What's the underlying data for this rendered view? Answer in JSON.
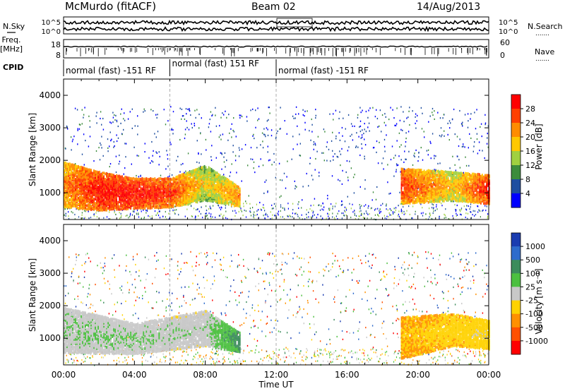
{
  "header": {
    "station": "McMurdo (fitACF)",
    "beam": "Beam 02",
    "date": "14/Aug/2013"
  },
  "side_labels": {
    "nsky": "N.Sky",
    "nsearch": "N.Search",
    "freq_line1": "Freq.",
    "freq_line2": "[MHz]",
    "nave": "Nave",
    "cpid": "CPID",
    "dots": "......."
  },
  "top_panels": {
    "noise_ticks_left": [
      "10^5",
      "10^0"
    ],
    "noise_ticks_right": [
      "10^5",
      "10^0"
    ],
    "freq_ticks_left": [
      "18",
      "8"
    ],
    "nave_ticks_right": [
      "60",
      "0"
    ]
  },
  "cpid_segments": [
    {
      "label": "normal (fast) -151 RF",
      "start_hour": 0,
      "end_hour": 6
    },
    {
      "label": "normal (fast) 151 RF",
      "start_hour": 6,
      "end_hour": 12
    },
    {
      "label": "normal (fast) -151 RF",
      "start_hour": 12,
      "end_hour": 24
    }
  ],
  "axes": {
    "xlabel": "Time UT",
    "x_ticks": [
      "00:00",
      "04:00",
      "08:00",
      "12:00",
      "16:00",
      "20:00",
      "00:00"
    ],
    "ylabel": "Slant Range [km]",
    "y_ticks": [
      "4000",
      "3000",
      "2000",
      "1000"
    ]
  },
  "power_colorbar": {
    "label": "Power [dB]",
    "ticks": [
      "28",
      "24",
      "20",
      "16",
      "12",
      "8",
      "4"
    ],
    "colors": [
      "#ff0000",
      "#ff4000",
      "#ff8c00",
      "#ffc800",
      "#a0d040",
      "#3c8c3c",
      "#1e4ea0",
      "#0000ff"
    ]
  },
  "velocity_colorbar": {
    "label": "Velocity [m s⁻¹]",
    "ticks": [
      "1000",
      "500",
      "100",
      "25",
      "-25",
      "-100",
      "-500",
      "-1000"
    ],
    "colors": [
      "#1a3cb0",
      "#2e6ccc",
      "#3c8c5c",
      "#4cc040",
      "#c8c8c8",
      "#ffd200",
      "#ff9000",
      "#ff5000",
      "#ff0000"
    ]
  },
  "chart_data": {
    "type": "heatmap",
    "title": "McMurdo (fitACF) Beam 02 14/Aug/2013",
    "xlabel": "Time UT",
    "ylabel": "Slant Range [km]",
    "xlim": [
      0,
      24
    ],
    "ylim": [
      180,
      4500
    ],
    "panels": [
      {
        "name": "Power [dB]",
        "color_range": [
          0,
          30
        ],
        "main_echo_band": [
          {
            "hour": 0,
            "range_low_km": 600,
            "range_high_km": 2000,
            "value_db": 22
          },
          {
            "hour": 2,
            "range_low_km": 500,
            "range_high_km": 1700,
            "value_db": 28
          },
          {
            "hour": 4,
            "range_low_km": 550,
            "range_high_km": 1500,
            "value_db": 28
          },
          {
            "hour": 6,
            "range_low_km": 600,
            "range_high_km": 1500,
            "value_db": 26
          },
          {
            "hour": 8,
            "range_low_km": 800,
            "range_high_km": 1900,
            "value_db": 16
          },
          {
            "hour": 10,
            "range_low_km": 600,
            "range_high_km": 1200,
            "value_db": 22
          },
          {
            "hour": 19,
            "range_low_km": 700,
            "range_high_km": 1800,
            "value_db": 26
          },
          {
            "hour": 22,
            "range_low_km": 800,
            "range_high_km": 1700,
            "value_db": 18
          },
          {
            "hour": 24,
            "range_low_km": 700,
            "range_high_km": 1600,
            "value_db": 28
          }
        ]
      },
      {
        "name": "Velocity [m s⁻¹]",
        "color_range": [
          -1000,
          1000
        ],
        "main_echo_band": [
          {
            "hour": 0,
            "range_low_km": 600,
            "range_high_km": 2000,
            "value_ms": 100
          },
          {
            "hour": 4,
            "range_low_km": 550,
            "range_high_km": 1500,
            "value_ms": 100
          },
          {
            "hour": 8,
            "range_low_km": 800,
            "range_high_km": 1900,
            "value_ms": 50
          },
          {
            "hour": 10,
            "range_low_km": 600,
            "range_high_km": 1200,
            "value_ms": 500
          },
          {
            "hour": 19,
            "range_low_km": 400,
            "range_high_km": 1700,
            "value_ms": -300
          },
          {
            "hour": 22,
            "range_low_km": 800,
            "range_high_km": 1800,
            "value_ms": -200
          },
          {
            "hour": 24,
            "range_low_km": 700,
            "range_high_km": 1600,
            "value_ms": -150
          }
        ]
      }
    ]
  }
}
